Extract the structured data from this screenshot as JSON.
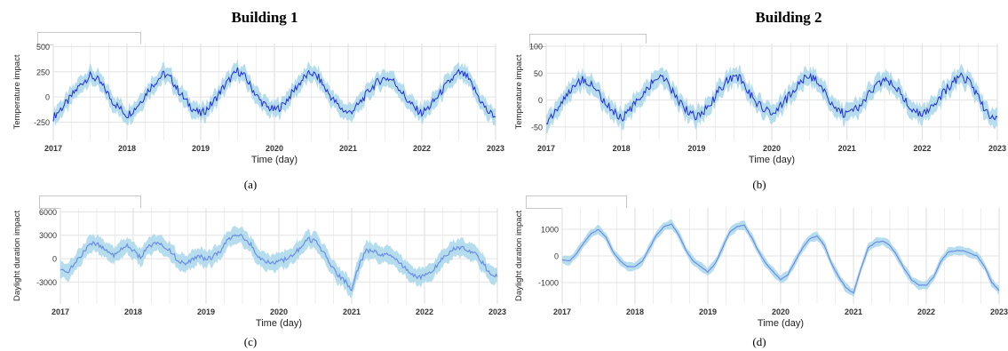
{
  "titles": {
    "left": "Building 1",
    "right": "Building 2"
  },
  "captions": {
    "a": "(a)",
    "b": "(b)",
    "c": "(c)",
    "d": "(d)"
  },
  "colors": {
    "band": "#a9d7ea",
    "line_temp": "#1f2fd6",
    "line_day": "#6c8ee6",
    "grid": "#e3e3e3",
    "axis": "#555555"
  },
  "chart_data": [
    {
      "id": "a",
      "type": "line",
      "title": "Building 1",
      "xlabel": "Time (day)",
      "ylabel": "Temperature impact",
      "x_ticks": [
        "2017",
        "2018",
        "2019",
        "2020",
        "2021",
        "2022",
        "2023"
      ],
      "xlim": [
        2017,
        2023
      ],
      "ylim": [
        -430,
        530
      ],
      "y_ticks": [
        -250,
        0,
        250,
        500
      ],
      "y_tick_labels": [
        "-250",
        "0",
        "250",
        "500"
      ],
      "band": "uncertainty interval (light blue)",
      "series": [
        {
          "x": [
            2017.0,
            2017.1,
            2017.2,
            2017.3,
            2017.4,
            2017.5,
            2017.6,
            2017.7,
            2017.8,
            2017.9,
            2018.0,
            2018.1,
            2018.2,
            2018.3,
            2018.4,
            2018.5,
            2018.6,
            2018.7,
            2018.8,
            2018.9,
            2019.0,
            2019.1,
            2019.2,
            2019.3,
            2019.4,
            2019.5,
            2019.6,
            2019.7,
            2019.8,
            2019.9,
            2020.0,
            2020.1,
            2020.2,
            2020.3,
            2020.4,
            2020.5,
            2020.6,
            2020.7,
            2020.8,
            2020.9,
            2021.0,
            2021.1,
            2021.2,
            2021.3,
            2021.4,
            2021.5,
            2021.6,
            2021.7,
            2021.8,
            2021.9,
            2022.0,
            2022.1,
            2022.2,
            2022.3,
            2022.4,
            2022.5,
            2022.6,
            2022.7,
            2022.8,
            2022.9,
            2023.0
          ],
          "values": [
            -200,
            -120,
            -40,
            60,
            150,
            210,
            170,
            80,
            -40,
            -110,
            -180,
            -120,
            -30,
            80,
            160,
            230,
            180,
            60,
            -40,
            -120,
            -170,
            -110,
            -20,
            90,
            180,
            260,
            200,
            80,
            -30,
            -100,
            -130,
            -90,
            0,
            100,
            190,
            240,
            190,
            70,
            -30,
            -110,
            -160,
            -110,
            -20,
            80,
            150,
            190,
            170,
            80,
            -30,
            -110,
            -160,
            -100,
            -10,
            90,
            170,
            240,
            210,
            90,
            -40,
            -150,
            -190
          ],
          "band_half_width": 90
        }
      ]
    },
    {
      "id": "b",
      "type": "line",
      "title": "Building 2",
      "xlabel": "Time (day)",
      "ylabel": "Temperature impact",
      "x_ticks": [
        "2017",
        "2018",
        "2019",
        "2020",
        "2021",
        "2022",
        "2023"
      ],
      "xlim": [
        2017,
        2023
      ],
      "ylim": [
        -75,
        105
      ],
      "y_ticks": [
        -50,
        0,
        50,
        100
      ],
      "y_tick_labels": [
        "-50",
        "0",
        "50",
        "100"
      ],
      "band": "uncertainty interval (light blue)",
      "series": [
        {
          "x": [
            2017.0,
            2017.1,
            2017.2,
            2017.3,
            2017.4,
            2017.5,
            2017.6,
            2017.7,
            2017.8,
            2017.9,
            2018.0,
            2018.1,
            2018.2,
            2018.3,
            2018.4,
            2018.5,
            2018.6,
            2018.7,
            2018.8,
            2018.9,
            2019.0,
            2019.1,
            2019.2,
            2019.3,
            2019.4,
            2019.5,
            2019.6,
            2019.7,
            2019.8,
            2019.9,
            2020.0,
            2020.1,
            2020.2,
            2020.3,
            2020.4,
            2020.5,
            2020.6,
            2020.7,
            2020.8,
            2020.9,
            2021.0,
            2021.1,
            2021.2,
            2021.3,
            2021.4,
            2021.5,
            2021.6,
            2021.7,
            2021.8,
            2021.9,
            2022.0,
            2022.1,
            2022.2,
            2022.3,
            2022.4,
            2022.5,
            2022.6,
            2022.7,
            2022.8,
            2022.9,
            2023.0
          ],
          "values": [
            -40,
            -25,
            -5,
            15,
            30,
            38,
            30,
            12,
            -8,
            -22,
            -35,
            -22,
            -3,
            15,
            32,
            42,
            34,
            12,
            -8,
            -24,
            -32,
            -20,
            -2,
            18,
            34,
            46,
            36,
            14,
            -5,
            -18,
            -25,
            -15,
            2,
            20,
            36,
            44,
            36,
            14,
            -6,
            -20,
            -30,
            -20,
            -4,
            14,
            28,
            36,
            32,
            14,
            -6,
            -20,
            -28,
            -18,
            -2,
            16,
            32,
            44,
            38,
            16,
            -10,
            -28,
            -35
          ],
          "band_half_width": 18
        }
      ]
    },
    {
      "id": "c",
      "type": "line",
      "title": "",
      "xlabel": "Time (day)",
      "ylabel": "Daylight duration impact",
      "x_ticks": [
        "2017",
        "2018",
        "2019",
        "2020",
        "2021",
        "2022",
        "2023"
      ],
      "xlim": [
        2017,
        2023
      ],
      "ylim": [
        -5800,
        6500
      ],
      "y_ticks": [
        -3000,
        0,
        3000,
        6000
      ],
      "y_tick_labels": [
        "-3000",
        "0",
        "3000",
        "6000"
      ],
      "band": "uncertainty interval (light blue)",
      "series": [
        {
          "x": [
            2017.0,
            2017.1,
            2017.2,
            2017.3,
            2017.4,
            2017.5,
            2017.6,
            2017.7,
            2017.8,
            2017.9,
            2018.0,
            2018.1,
            2018.2,
            2018.3,
            2018.4,
            2018.5,
            2018.6,
            2018.7,
            2018.8,
            2018.9,
            2019.0,
            2019.1,
            2019.2,
            2019.3,
            2019.4,
            2019.5,
            2019.6,
            2019.7,
            2019.8,
            2019.9,
            2020.0,
            2020.1,
            2020.2,
            2020.3,
            2020.4,
            2020.5,
            2020.6,
            2020.7,
            2020.8,
            2020.9,
            2021.0,
            2021.1,
            2021.2,
            2021.3,
            2021.4,
            2021.5,
            2021.6,
            2021.7,
            2021.8,
            2021.9,
            2022.0,
            2022.1,
            2022.2,
            2022.3,
            2022.4,
            2022.5,
            2022.6,
            2022.7,
            2022.8,
            2022.9,
            2023.0
          ],
          "values": [
            -1500,
            -1800,
            -600,
            600,
            1800,
            2000,
            1300,
            300,
            800,
            1800,
            1000,
            200,
            1500,
            2000,
            1600,
            1000,
            0,
            -800,
            -300,
            500,
            -200,
            300,
            1000,
            2500,
            3000,
            2800,
            2000,
            500,
            -200,
            -600,
            -400,
            0,
            500,
            1500,
            2500,
            2200,
            1000,
            -500,
            -2000,
            -2800,
            -4000,
            -800,
            1000,
            1000,
            500,
            500,
            0,
            -1000,
            -1800,
            -2500,
            -2300,
            -1500,
            -500,
            500,
            1200,
            1400,
            1000,
            500,
            -500,
            -2000,
            -2200
          ],
          "band_half_width": 1200
        }
      ]
    },
    {
      "id": "d",
      "type": "line",
      "title": "",
      "xlabel": "Time (day)",
      "ylabel": "Daylight duration impact",
      "x_ticks": [
        "2017",
        "2018",
        "2019",
        "2020",
        "2021",
        "2022",
        "2023"
      ],
      "xlim": [
        2017,
        2023
      ],
      "ylim": [
        -1800,
        1800
      ],
      "y_ticks": [
        -1000,
        0,
        1000
      ],
      "y_tick_labels": [
        "-1000",
        "0",
        "1000"
      ],
      "band": "uncertainty interval (light blue)",
      "series": [
        {
          "x": [
            2017.0,
            2017.1,
            2017.2,
            2017.3,
            2017.4,
            2017.5,
            2017.6,
            2017.7,
            2017.8,
            2017.9,
            2018.0,
            2018.1,
            2018.2,
            2018.3,
            2018.4,
            2018.5,
            2018.6,
            2018.7,
            2018.8,
            2018.9,
            2019.0,
            2019.1,
            2019.2,
            2019.3,
            2019.4,
            2019.5,
            2019.6,
            2019.7,
            2019.8,
            2019.9,
            2020.0,
            2020.1,
            2020.2,
            2020.3,
            2020.4,
            2020.5,
            2020.6,
            2020.7,
            2020.8,
            2020.9,
            2021.0,
            2021.1,
            2021.2,
            2021.3,
            2021.4,
            2021.5,
            2021.6,
            2021.7,
            2021.8,
            2021.9,
            2022.0,
            2022.1,
            2022.2,
            2022.3,
            2022.4,
            2022.5,
            2022.6,
            2022.7,
            2022.8,
            2022.9,
            2023.0
          ],
          "values": [
            -150,
            -200,
            100,
            500,
            850,
            1000,
            700,
            150,
            -200,
            -400,
            -400,
            -200,
            300,
            800,
            1100,
            1200,
            800,
            200,
            -200,
            -400,
            -600,
            -300,
            300,
            900,
            1100,
            1150,
            700,
            150,
            -300,
            -600,
            -900,
            -700,
            -200,
            300,
            650,
            750,
            400,
            -300,
            -800,
            -1200,
            -1400,
            -500,
            300,
            500,
            550,
            400,
            0,
            -500,
            -900,
            -1100,
            -1100,
            -800,
            -200,
            150,
            200,
            200,
            100,
            0,
            -400,
            -1000,
            -1300
          ],
          "band_half_width": 180
        }
      ]
    }
  ]
}
